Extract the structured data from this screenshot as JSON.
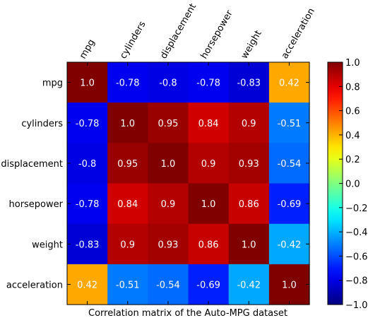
{
  "chart_data": {
    "type": "heatmap",
    "title": "",
    "xlabel": "Correlation matrix of the Auto-MPG dataset",
    "ylabel": "",
    "x_labels": [
      "mpg",
      "cylinders",
      "displacement",
      "horsepower",
      "weight",
      "acceleration"
    ],
    "y_labels": [
      "mpg",
      "cylinders",
      "displacement",
      "horsepower",
      "weight",
      "acceleration"
    ],
    "values": [
      [
        1.0,
        -0.78,
        -0.8,
        -0.78,
        -0.83,
        0.42
      ],
      [
        -0.78,
        1.0,
        0.95,
        0.84,
        0.9,
        -0.51
      ],
      [
        -0.8,
        0.95,
        1.0,
        0.9,
        0.93,
        -0.54
      ],
      [
        -0.78,
        0.84,
        0.9,
        1.0,
        0.86,
        -0.69
      ],
      [
        -0.83,
        0.9,
        0.93,
        0.86,
        1.0,
        -0.42
      ],
      [
        0.42,
        -0.51,
        -0.54,
        -0.69,
        -0.42,
        1.0
      ]
    ],
    "value_labels": [
      [
        "1.0",
        "-0.78",
        "-0.8",
        "-0.78",
        "-0.83",
        "0.42"
      ],
      [
        "-0.78",
        "1.0",
        "0.95",
        "0.84",
        "0.9",
        "-0.51"
      ],
      [
        "-0.8",
        "0.95",
        "1.0",
        "0.9",
        "0.93",
        "-0.54"
      ],
      [
        "-0.78",
        "0.84",
        "0.9",
        "1.0",
        "0.86",
        "-0.69"
      ],
      [
        "-0.83",
        "0.9",
        "0.93",
        "0.86",
        "1.0",
        "-0.42"
      ],
      [
        "0.42",
        "-0.51",
        "-0.54",
        "-0.69",
        "-0.42",
        "1.0"
      ]
    ],
    "colorscale": "jet",
    "vmin": -1.0,
    "vmax": 1.0,
    "colorbar_ticks": [
      1.0,
      0.8,
      0.6,
      0.4,
      0.2,
      0.0,
      -0.2,
      -0.4,
      -0.6,
      -0.8,
      -1.0
    ],
    "colorbar_tick_labels": [
      "1.0",
      "0.8",
      "0.6",
      "0.4",
      "0.2",
      "0.0",
      "−0.2",
      "−0.4",
      "−0.6",
      "−0.8",
      "−1.0"
    ],
    "x_tick_rotation_deg": 60,
    "grid": false
  }
}
